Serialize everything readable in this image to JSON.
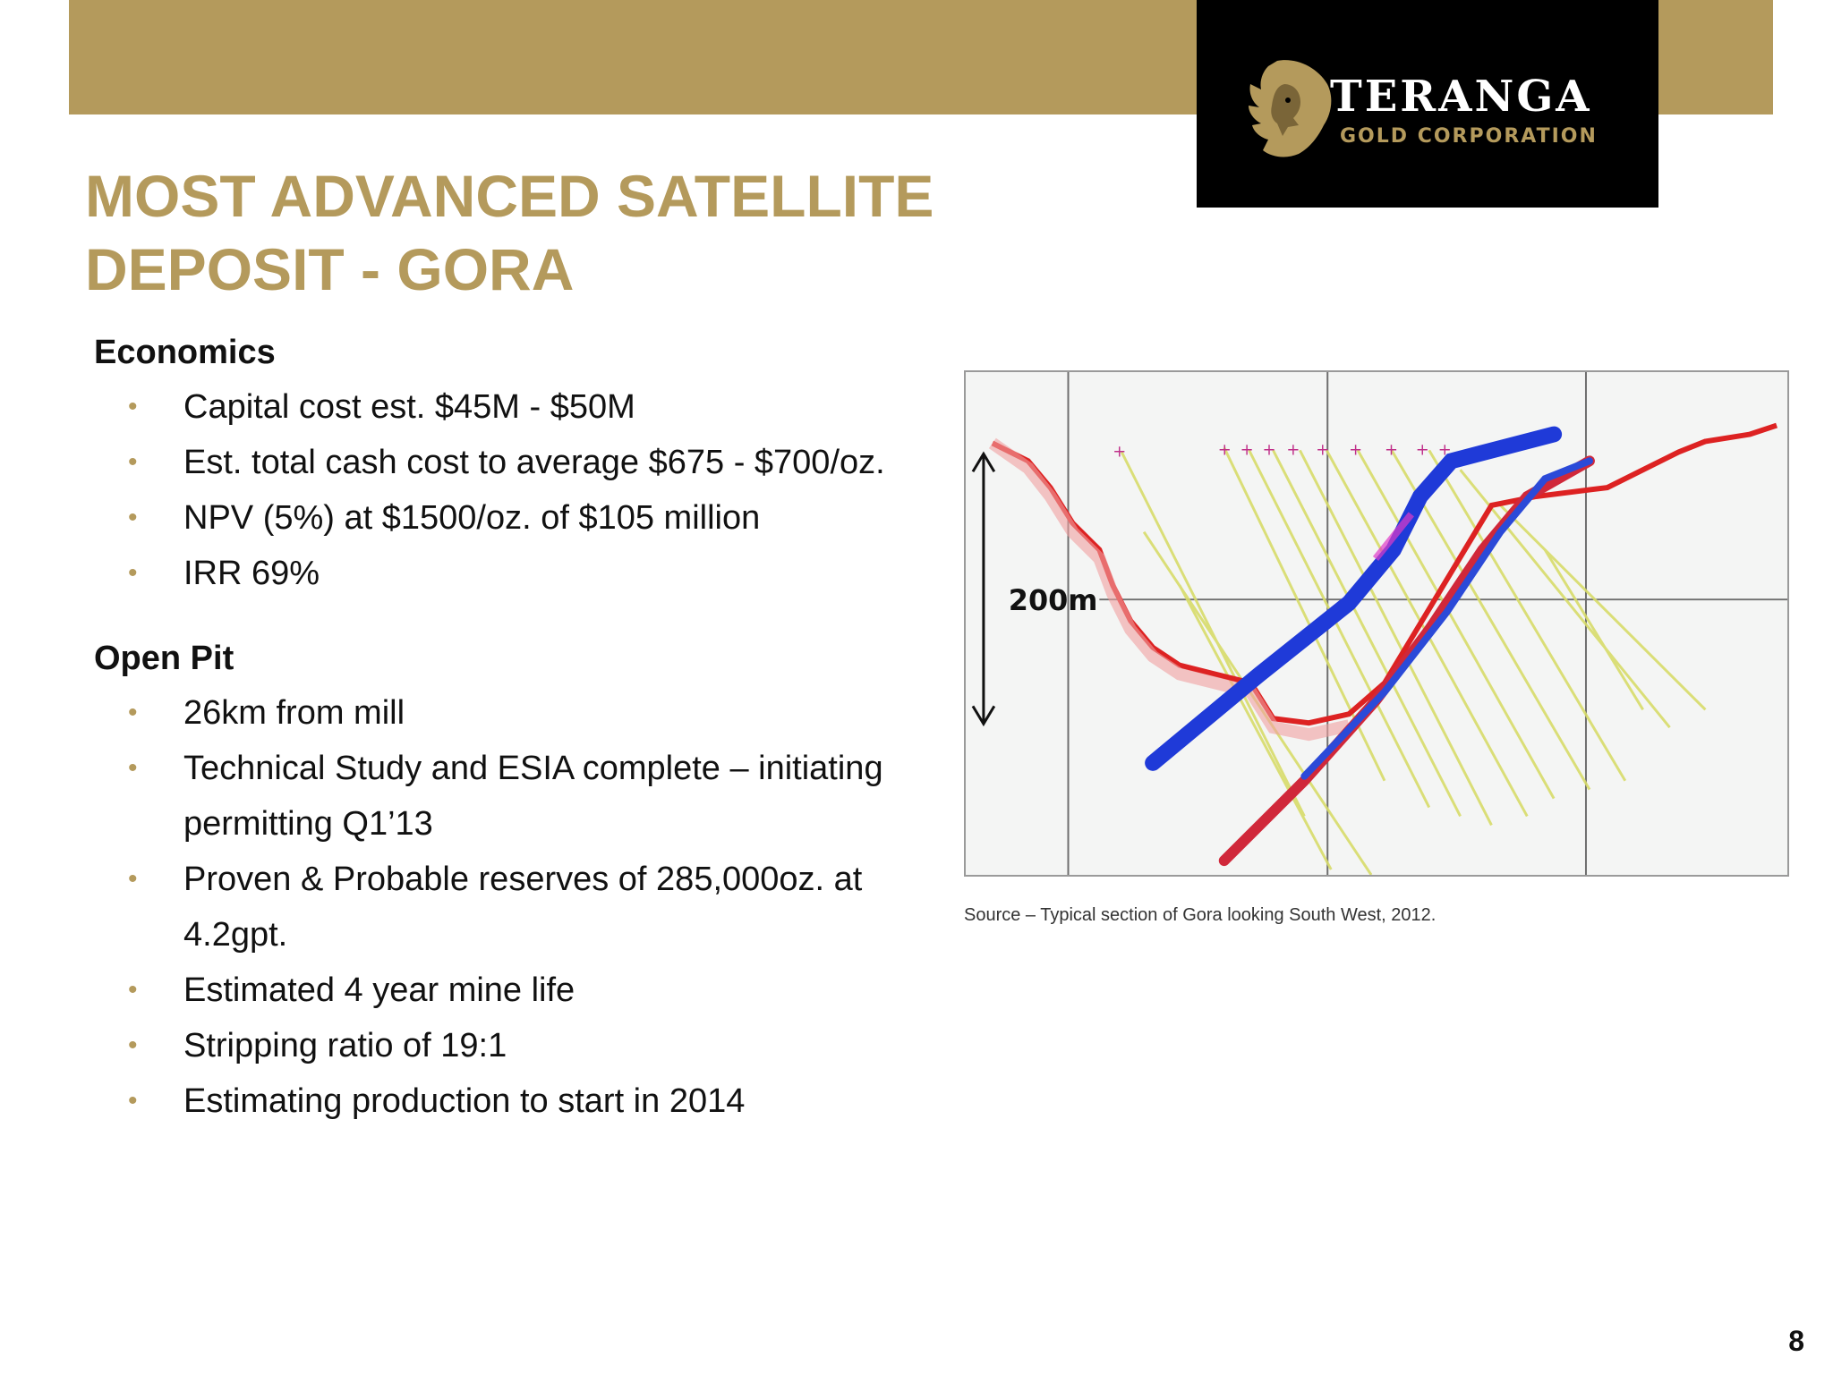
{
  "logo": {
    "name": "TERANGA",
    "subtitle": "GOLD CORPORATION",
    "icon": "lion-head-icon"
  },
  "title": {
    "line1": "MOST ADVANCED SATELLITE",
    "line2": "DEPOSIT - GORA"
  },
  "economics": {
    "heading": "Economics",
    "items": [
      "Capital cost est. $45M - $50M",
      "Est. total cash cost to average $675 - $700/oz.",
      "NPV (5%) at $1500/oz. of $105 million",
      "IRR 69%"
    ]
  },
  "open_pit": {
    "heading": "Open Pit",
    "items": [
      "26km from mill",
      "Technical Study and ESIA complete – initiating permitting Q1’13",
      "Proven & Probable reserves of 285,000oz. at 4.2gpt.",
      "Estimated 4 year mine life",
      "Stripping ratio of 19:1",
      "Estimating production to start in 2014"
    ]
  },
  "figure": {
    "scale_label": "200m",
    "caption": "Source – Typical section of Gora looking South West,  2012."
  },
  "colors": {
    "gold": "#b49a5c",
    "logo_background": "#000000"
  },
  "page_number": "8"
}
